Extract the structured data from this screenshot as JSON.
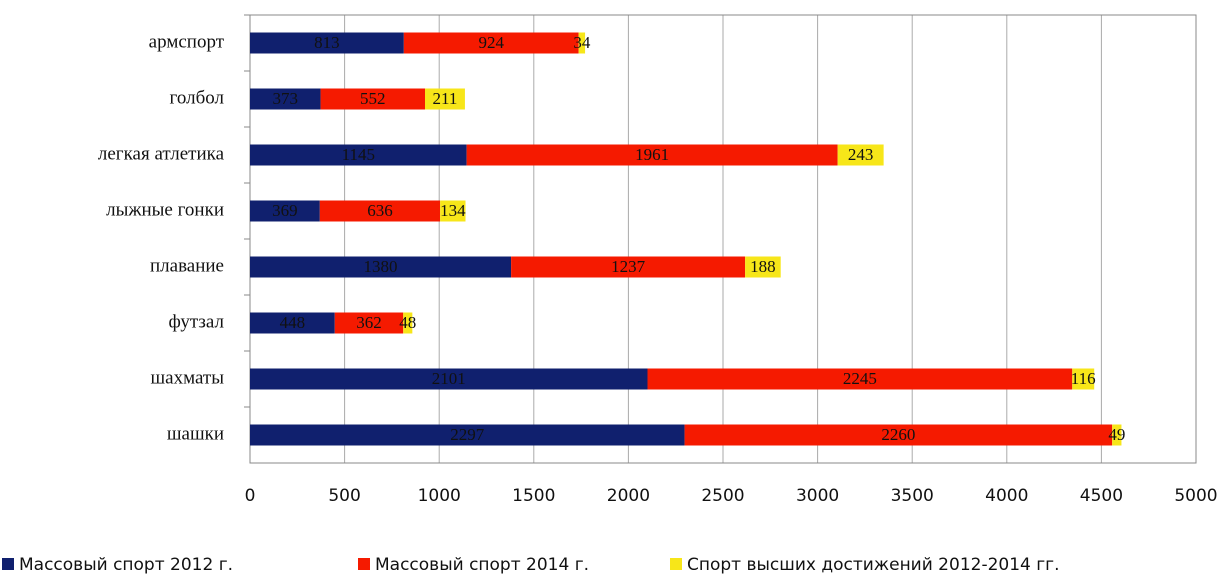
{
  "chart_data": {
    "type": "stacked_barh",
    "categories": [
      "армспорт",
      "голбол",
      "легкая атлетика",
      "лыжные гонки",
      "плавание",
      "футзал",
      "шахматы",
      "шашки"
    ],
    "series": [
      {
        "name": "Массовый спорт 2012 г.",
        "color": "#10206e",
        "values": [
          813,
          373,
          1145,
          369,
          1380,
          448,
          2101,
          2297
        ]
      },
      {
        "name": "Массовый спорт 2014 г.",
        "color": "#f51a00",
        "values": [
          924,
          552,
          1961,
          636,
          1237,
          362,
          2245,
          2260
        ]
      },
      {
        "name": "Спорт высших достижений 2012-2014 гг.",
        "color": "#f7e619",
        "values": [
          34,
          211,
          243,
          134,
          188,
          48,
          116,
          49
        ]
      }
    ],
    "xlim": [
      0,
      5000
    ],
    "xticks": [
      0,
      500,
      1000,
      1500,
      2000,
      2500,
      3000,
      3500,
      4000,
      4500,
      5000
    ],
    "grid": true,
    "legend": "bottom"
  }
}
